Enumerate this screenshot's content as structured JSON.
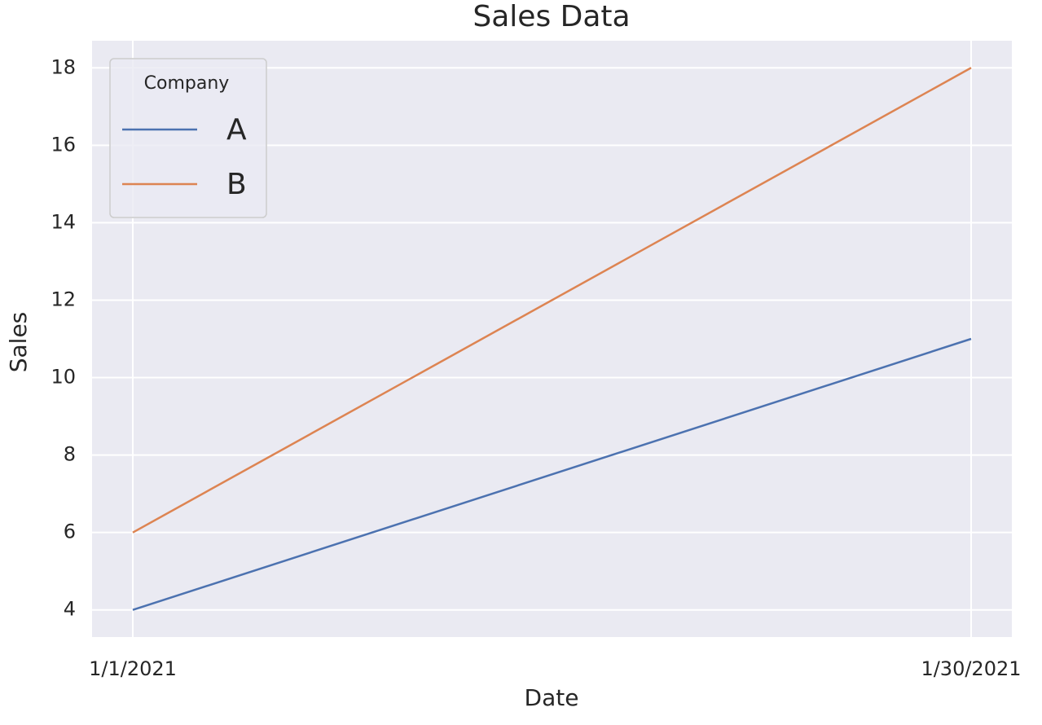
{
  "chart_data": {
    "type": "line",
    "title": "Sales Data",
    "x_label": "Date",
    "y_label": "Sales",
    "x": [
      "1/1/2021",
      "1/30/2021"
    ],
    "series": [
      {
        "name": "A",
        "color": "#4c72b0",
        "values": [
          4,
          11
        ]
      },
      {
        "name": "B",
        "color": "#dd8452",
        "values": [
          6,
          18
        ]
      }
    ],
    "ylim": [
      3.3,
      18.7
    ],
    "yticks": [
      4,
      6,
      8,
      10,
      12,
      14,
      16,
      18
    ],
    "grid": true,
    "legend_title": "Company",
    "legend": "upper left"
  }
}
